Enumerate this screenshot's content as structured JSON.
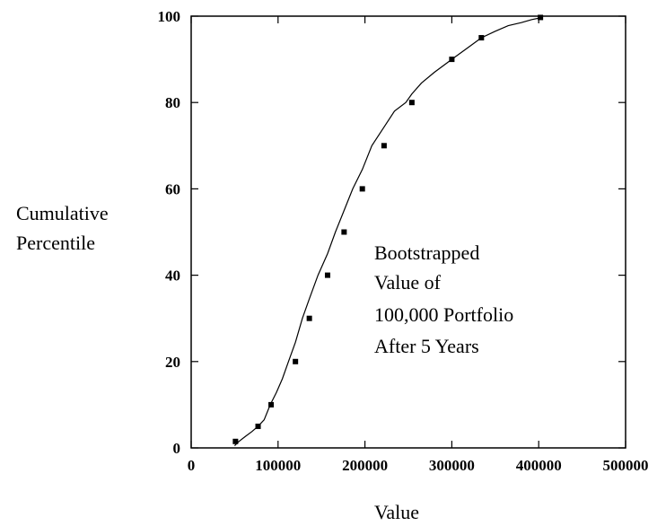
{
  "chart_data": {
    "type": "line",
    "xlabel": "Value",
    "ylabel_lines": [
      "Cumulative",
      "Percentile"
    ],
    "xlim": [
      0,
      500000
    ],
    "ylim": [
      0,
      100
    ],
    "x_ticks": [
      0,
      100000,
      200000,
      300000,
      400000,
      500000
    ],
    "x_tick_labels": [
      "0",
      "100000",
      "200000",
      "300000",
      "400000",
      "500000"
    ],
    "y_ticks": [
      0,
      20,
      40,
      60,
      80,
      100
    ],
    "y_tick_labels": [
      "0",
      "20",
      "40",
      "60",
      "80",
      "100"
    ],
    "grid": false,
    "annotation_lines": [
      "Bootstrapped",
      "Value of",
      "100,000 Portfolio",
      "After 5 Years"
    ],
    "curve": {
      "x": [
        50000,
        55000,
        62000,
        70000,
        77000,
        84000,
        91000,
        98000,
        105000,
        112000,
        120000,
        128000,
        136000,
        146000,
        157000,
        166000,
        176000,
        186000,
        197000,
        208000,
        221000,
        234000,
        247000,
        254000,
        265000,
        280000,
        300000,
        317000,
        334000,
        350000,
        365000,
        380000,
        392000,
        402000
      ],
      "y": [
        0.5,
        1.5,
        2.6,
        3.8,
        5,
        6.5,
        10,
        12.8,
        16,
        20,
        24.5,
        30,
        34.5,
        40,
        45,
        50,
        55,
        60,
        64.5,
        70,
        74,
        78,
        80,
        82,
        84.5,
        87,
        90,
        92.5,
        95,
        96.5,
        97.8,
        98.5,
        99.2,
        99.6
      ]
    },
    "markers": {
      "x": [
        51000,
        77000,
        92000,
        120000,
        136000,
        157000,
        176000,
        197000,
        222000,
        254000,
        300000,
        334000,
        402000
      ],
      "y": [
        1.5,
        5,
        10,
        20,
        30,
        40,
        50,
        60,
        70,
        80,
        90,
        95,
        99.7
      ]
    }
  }
}
